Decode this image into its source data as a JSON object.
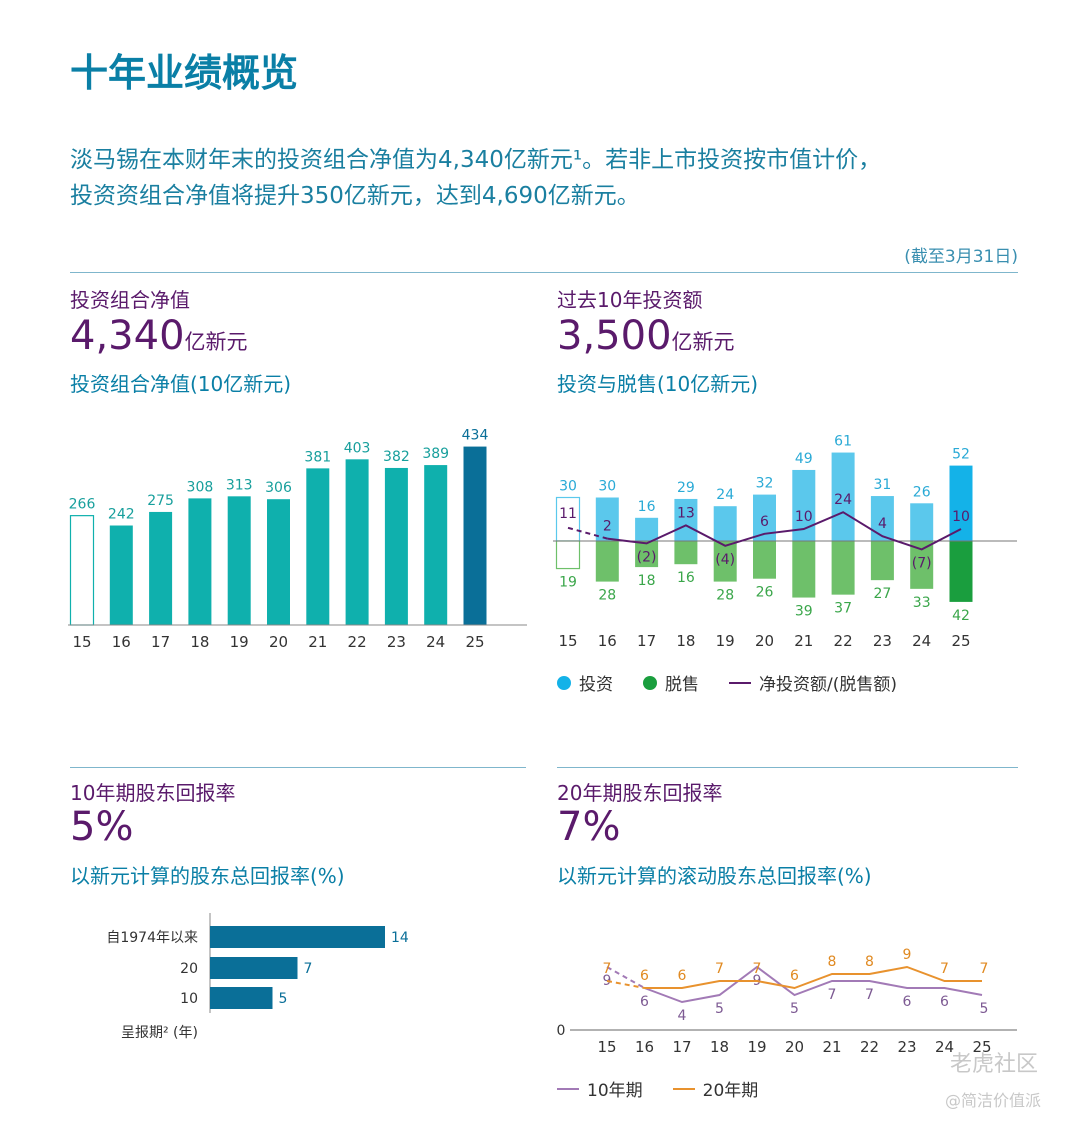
{
  "page": {
    "title": "十年业绩概览",
    "intro_line1": "淡马锡在本财年末的投资组合净值为4,340亿新元¹。若非上市投资按市值计价，",
    "intro_line2": "投资资组合净值将提升350亿新元，达到4,690亿新元。",
    "as_of": "(截至3月31日)"
  },
  "sections": {
    "nav": {
      "label": "投资组合净值",
      "value": "4,340",
      "unit": "亿新元",
      "chart_title": "投资组合净值(10亿新元)"
    },
    "invest": {
      "label": "过去10年投资额",
      "value": "3,500",
      "unit": "亿新元",
      "chart_title": "投资与脱售(10亿新元)"
    },
    "tsr10": {
      "label": "10年期股东回报率",
      "value": "5%",
      "chart_title": "以新元计算的股东总回报率(%)"
    },
    "tsr20": {
      "label": "20年期股东回报率",
      "value": "7%",
      "chart_title": "以新元计算的滚动股东总回报率(%)"
    }
  },
  "legend": {
    "invest": "投资",
    "divest": "脱售",
    "net": "净投资额/(脱售额)",
    "ten_year": "10年期",
    "twenty_year": "20年期"
  },
  "watermark": {
    "line1": "老虎社区",
    "line2": "@简洁价值派"
  },
  "colors": {
    "teal": "#0fb0ad",
    "navy": "#0a6f98",
    "sky": "#5bc8ec",
    "sky_dark": "#14b2e8",
    "green": "#6ec06a",
    "green_dark": "#1a9e3e",
    "purple": "#5a1a6b",
    "orange": "#e8922e",
    "lilac": "#a27ab6"
  },
  "chart_data": [
    {
      "type": "bar",
      "title": "投资组合净值(10亿新元)",
      "categories": [
        "15",
        "16",
        "17",
        "18",
        "19",
        "20",
        "21",
        "22",
        "23",
        "24",
        "25"
      ],
      "values": [
        266,
        242,
        275,
        308,
        313,
        306,
        381,
        403,
        382,
        389,
        434
      ],
      "labels": [
        "266",
        "242",
        "275",
        "308",
        "313",
        "306",
        "381",
        "403",
        "382",
        "389",
        "434"
      ],
      "ylim": [
        0,
        450
      ]
    },
    {
      "type": "bar",
      "title": "投资与脱售(10亿新元)",
      "categories": [
        "15",
        "16",
        "17",
        "18",
        "19",
        "20",
        "21",
        "22",
        "23",
        "24",
        "25"
      ],
      "series": [
        {
          "name": "投资",
          "values": [
            30,
            30,
            16,
            29,
            24,
            32,
            49,
            61,
            31,
            26,
            52
          ],
          "labels": [
            "30",
            "30",
            "16",
            "29",
            "24",
            "32",
            "49",
            "61",
            "31",
            "26",
            "52"
          ]
        },
        {
          "name": "脱售",
          "values": [
            19,
            28,
            18,
            16,
            28,
            26,
            39,
            37,
            27,
            33,
            42
          ],
          "labels": [
            "19",
            "28",
            "18",
            "16",
            "28",
            "26",
            "39",
            "37",
            "27",
            "33",
            "42"
          ]
        },
        {
          "name": "净投资额/(脱售额)",
          "values": [
            11,
            2,
            -2,
            13,
            -4,
            6,
            10,
            24,
            4,
            -7,
            10
          ],
          "labels": [
            "11",
            "2",
            "(2)",
            "13",
            "(4)",
            "6",
            "10",
            "24",
            "4",
            "(7)",
            "10"
          ]
        }
      ]
    },
    {
      "type": "bar",
      "orientation": "horizontal",
      "title": "以新元计算的股东总回报率(%)",
      "categories": [
        "自1974年以来",
        "20",
        "10"
      ],
      "values": [
        14,
        7,
        5
      ],
      "labels": [
        "14",
        "7",
        "5"
      ],
      "ylabel": "呈报期² (年)"
    },
    {
      "type": "line",
      "title": "以新元计算的滚动股东总回报率(%)",
      "x": [
        "15",
        "16",
        "17",
        "18",
        "19",
        "20",
        "21",
        "22",
        "23",
        "24",
        "25"
      ],
      "y_zero_label": "0",
      "series": [
        {
          "name": "10年期",
          "values": [
            9,
            6,
            4,
            5,
            9,
            5,
            7,
            7,
            6,
            6,
            5
          ],
          "labels": [
            "9",
            "6",
            "4",
            "5",
            "9",
            "5",
            "7",
            "7",
            "6",
            "6",
            "5"
          ]
        },
        {
          "name": "20年期",
          "values": [
            7,
            6,
            6,
            7,
            7,
            6,
            8,
            8,
            9,
            7,
            7
          ],
          "labels": [
            "7",
            "6",
            "6",
            "7",
            "7",
            "6",
            "8",
            "8",
            "9",
            "7",
            "7"
          ]
        }
      ]
    }
  ]
}
